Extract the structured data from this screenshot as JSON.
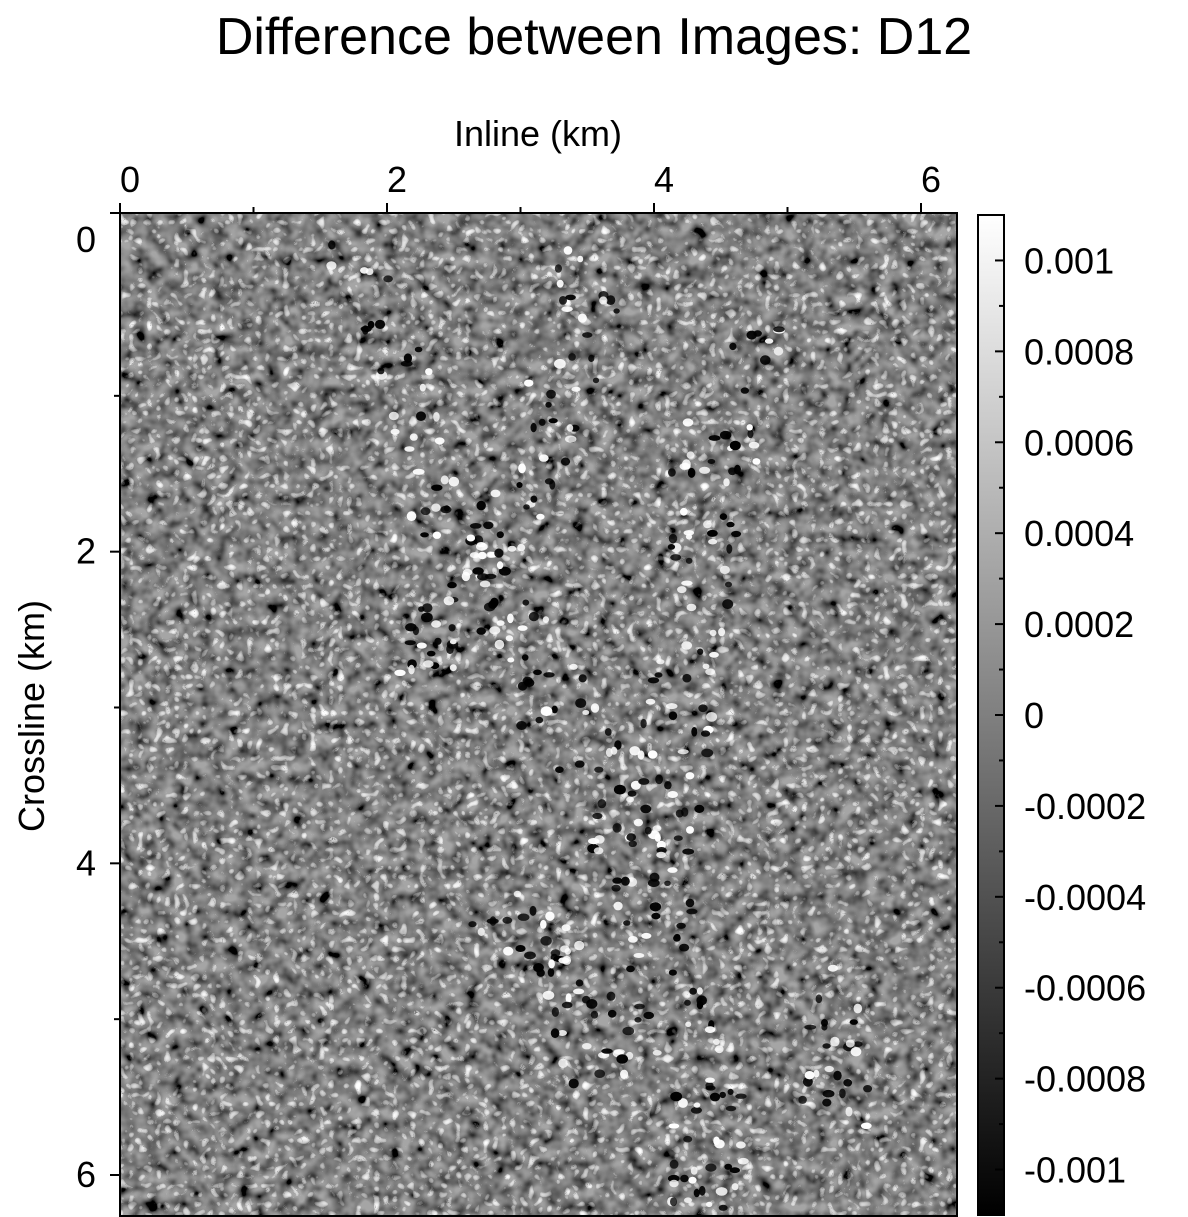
{
  "chart_data": {
    "type": "heatmap",
    "title": "Difference between Images: D12",
    "xlabel": "Inline (km)",
    "ylabel": "Crossline (km)",
    "x_axis_position": "top",
    "xlim": [
      0,
      6.25
    ],
    "ylim": [
      0,
      6.25
    ],
    "x_ticks": [
      0,
      2,
      4,
      6
    ],
    "x_tick_labels": [
      "0",
      "2",
      "4",
      "6"
    ],
    "y_ticks": [
      0,
      2,
      4,
      6
    ],
    "y_tick_labels": [
      "0",
      "2",
      "4",
      "6"
    ],
    "colormap": {
      "low_color": "#000000",
      "high_color": "#ffffff",
      "name": "grayscale"
    },
    "colorbar": {
      "position": "right",
      "range": [
        -0.0011,
        0.0011
      ],
      "ticks": [
        0.001,
        0.0008,
        0.0006,
        0.0004,
        0.0002,
        0,
        -0.0002,
        -0.0004,
        -0.0006,
        -0.0008,
        -0.001
      ],
      "tick_labels": [
        "0.001",
        "0.0008",
        "0.0006",
        "0.0004",
        "0.0002",
        "0",
        "-0.0002",
        "-0.0004",
        "-0.0006",
        "-0.0008",
        "-0.001"
      ]
    },
    "field_description": "random speckle noise with stronger black/white blobs along curved bands"
  }
}
